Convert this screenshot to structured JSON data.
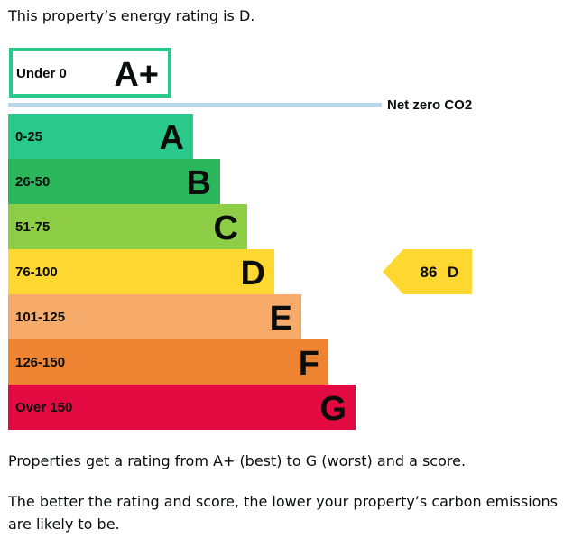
{
  "intro_text": "This property’s energy rating is D.",
  "chart_data": {
    "type": "bar",
    "title": "",
    "bands": [
      {
        "range": "Under 0",
        "letter": "A+",
        "color": "#2ac88a",
        "outline_only": true
      },
      {
        "range": "0-25",
        "letter": "A",
        "color": "#2ac88a"
      },
      {
        "range": "26-50",
        "letter": "B",
        "color": "#2cb65c"
      },
      {
        "range": "51-75",
        "letter": "C",
        "color": "#8dce46"
      },
      {
        "range": "76-100",
        "letter": "D",
        "color": "#fed730"
      },
      {
        "range": "101-125",
        "letter": "E",
        "color": "#f7ab6b"
      },
      {
        "range": "126-150",
        "letter": "F",
        "color": "#ee8332"
      },
      {
        "range": "Over 150",
        "letter": "G",
        "color": "#e30a42"
      }
    ],
    "net_zero_label": "Net zero CO2",
    "net_zero_line_color": "#b7d7e8",
    "current_rating": {
      "score": "86",
      "letter": "D",
      "color": "#fed730"
    }
  },
  "para1": "Properties get a rating from A+ (best) to G (worst) and a score.",
  "para2": "The better the rating and score, the lower your property’s carbon emissions are likely to be."
}
